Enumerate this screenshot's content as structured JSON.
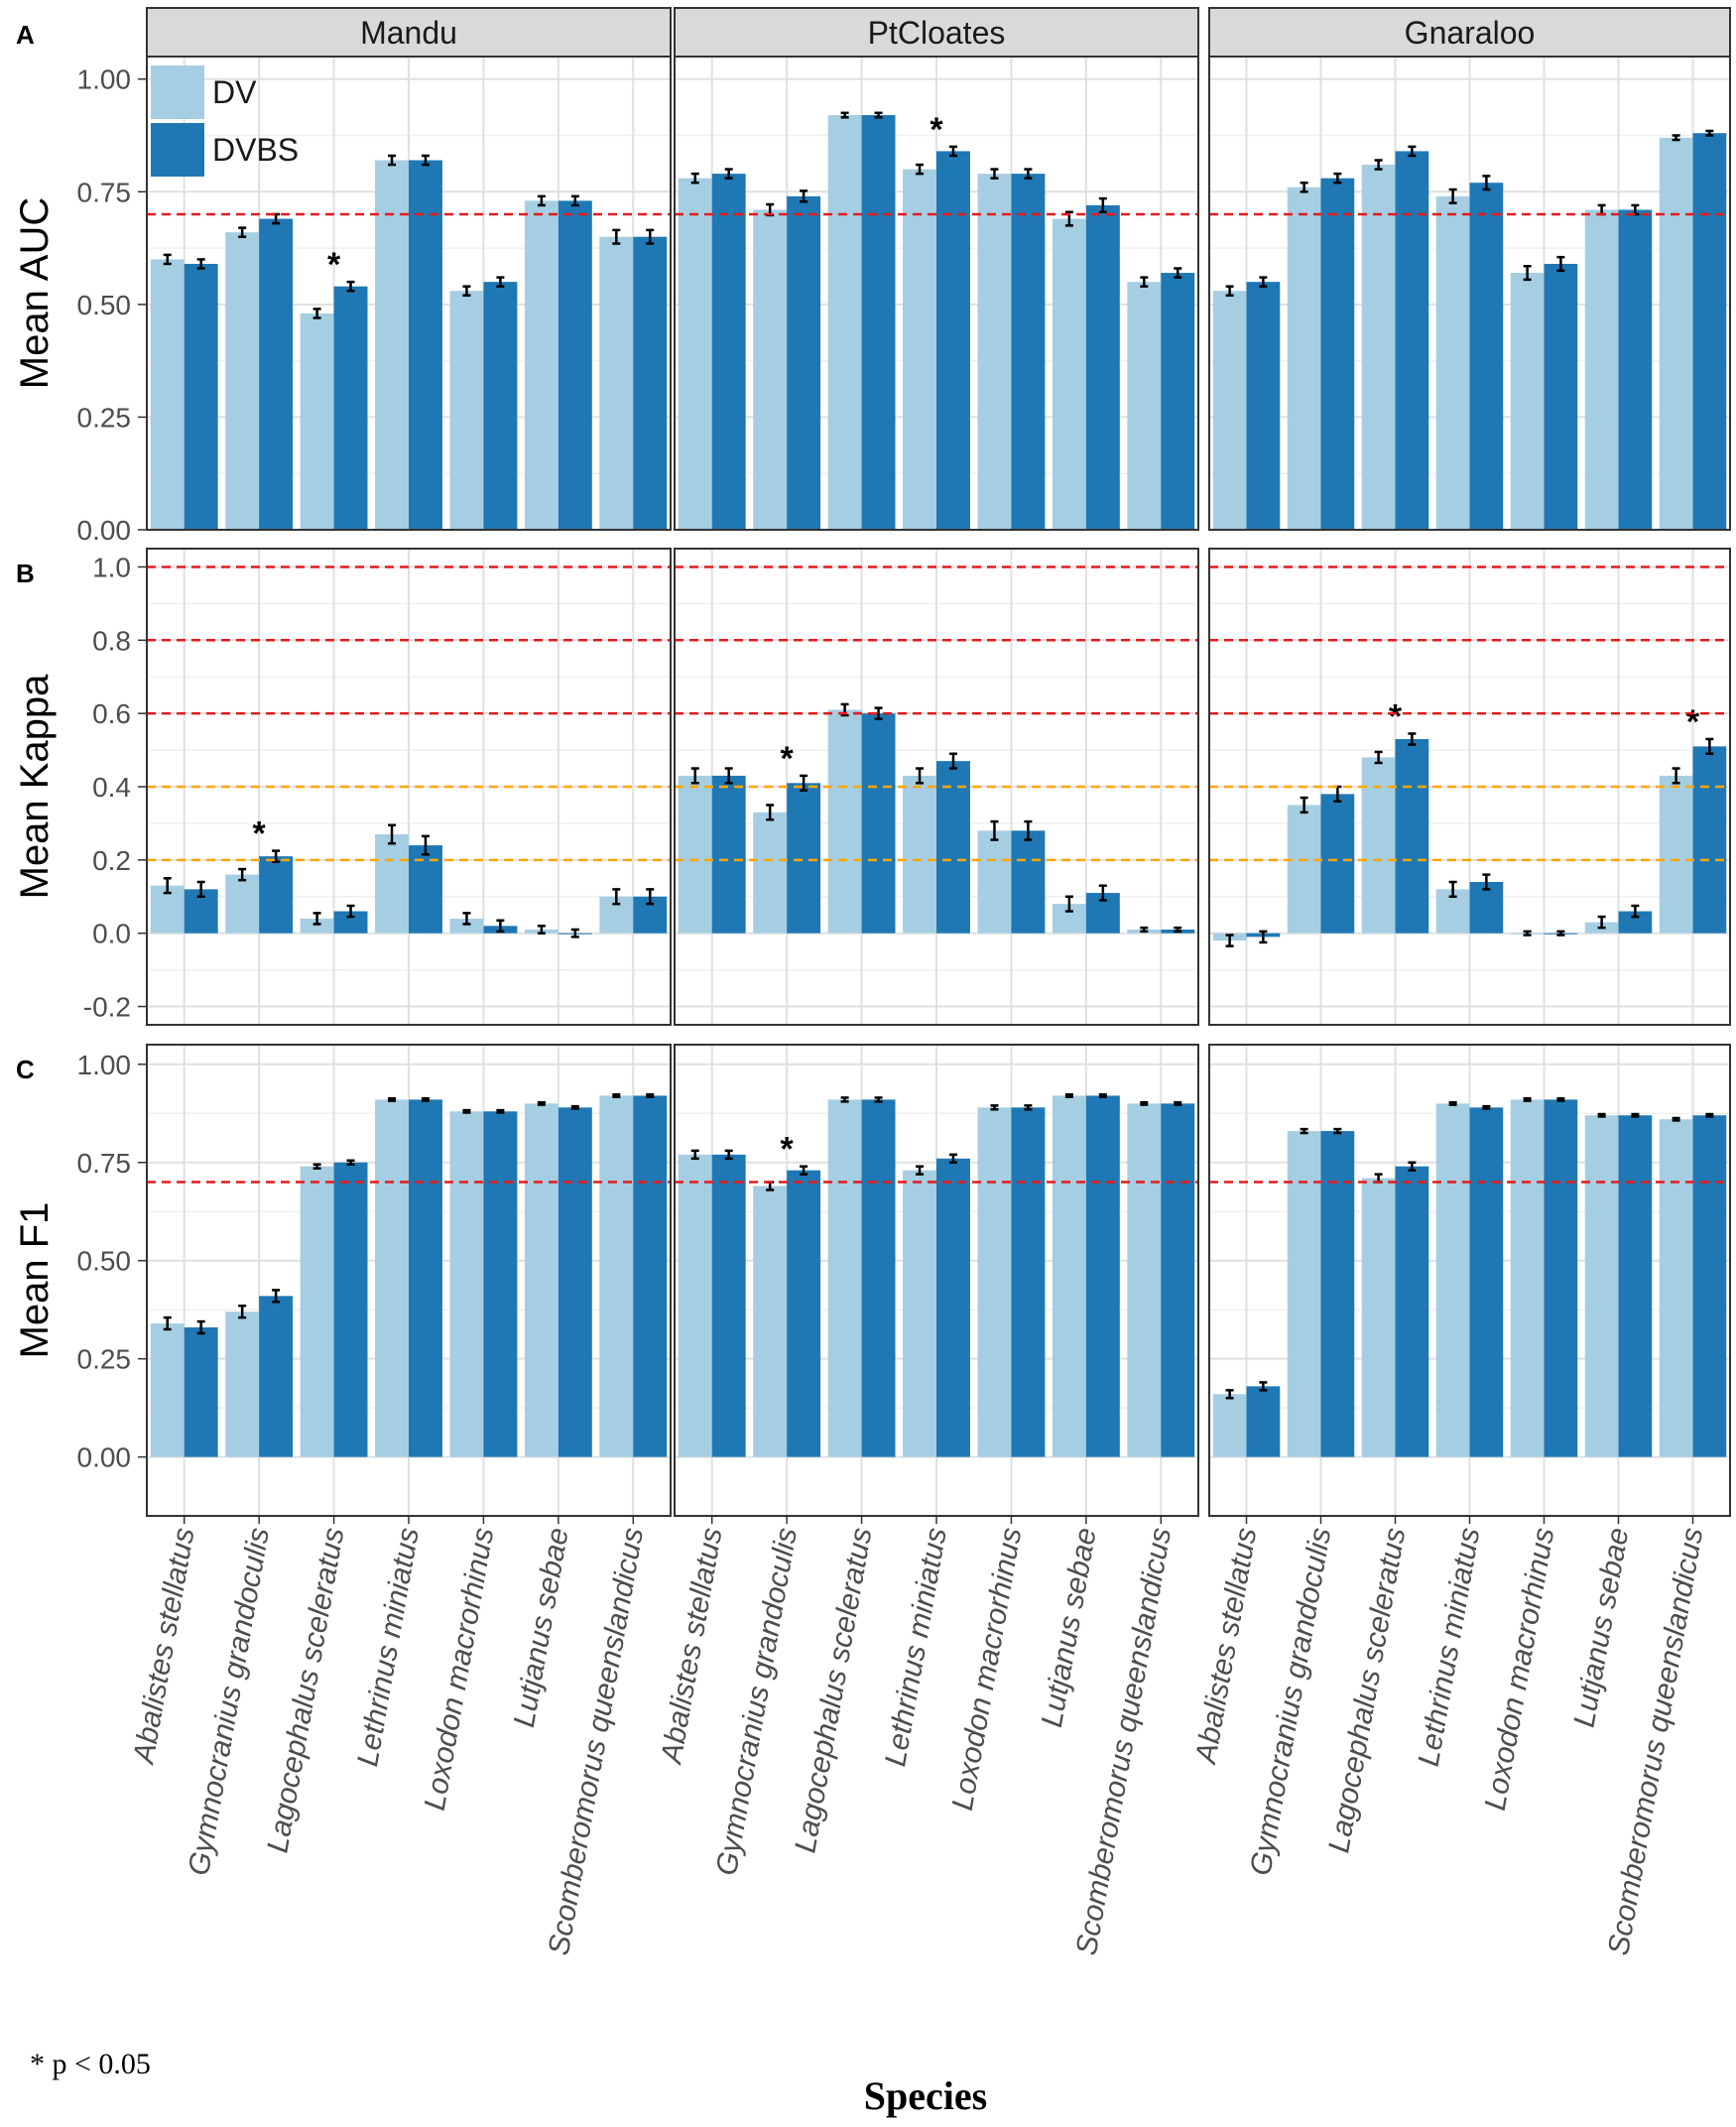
{
  "chart_data": {
    "type": "bar",
    "facets": [
      "Mandu",
      "PtCloates",
      "Gnaraloo"
    ],
    "categories": [
      "Abalistes stellatus",
      "Gymnocranius grandoculis",
      "Lagocephalus sceleratus",
      "Lethrinus miniatus",
      "Loxodon macrorhinus",
      "Lutjanus sebae",
      "Scomberomorus queenslandicus"
    ],
    "legend": [
      "DV",
      "DVBS"
    ],
    "colors": {
      "DV": "#a6cee3",
      "DVBS": "#1f78b4",
      "ref_red": "#e41a1c",
      "ref_orange": "#ffa500"
    },
    "xlabel": "Species",
    "footnote": "* p < 0.05",
    "panels": [
      {
        "letter": "A",
        "ylabel": "Mean AUC",
        "ylim": [
          0,
          1.05
        ],
        "yticks": [
          "0.00",
          "0.25",
          "0.50",
          "0.75",
          "1.00"
        ],
        "ytick_values": [
          0,
          0.25,
          0.5,
          0.75,
          1.0
        ],
        "ref_lines": [
          {
            "value": 0.7,
            "color": "red"
          }
        ],
        "data": {
          "Mandu": {
            "DV": [
              0.6,
              0.66,
              0.48,
              0.82,
              0.53,
              0.73,
              0.65
            ],
            "DVBS": [
              0.59,
              0.69,
              0.54,
              0.82,
              0.55,
              0.73,
              0.65
            ],
            "err": [
              0.01,
              0.01,
              0.01,
              0.01,
              0.01,
              0.01,
              0.015
            ],
            "sig": [
              2
            ]
          },
          "PtCloates": {
            "DV": [
              0.78,
              0.71,
              0.92,
              0.8,
              0.79,
              0.69,
              0.55
            ],
            "DVBS": [
              0.79,
              0.74,
              0.92,
              0.84,
              0.79,
              0.72,
              0.57
            ],
            "err": [
              0.01,
              0.012,
              0.005,
              0.01,
              0.01,
              0.015,
              0.01
            ],
            "sig": [
              3
            ]
          },
          "Gnaraloo": {
            "DV": [
              0.53,
              0.76,
              0.81,
              0.74,
              0.57,
              0.71,
              0.87
            ],
            "DVBS": [
              0.55,
              0.78,
              0.84,
              0.77,
              0.59,
              0.71,
              0.88
            ],
            "err": [
              0.01,
              0.01,
              0.01,
              0.015,
              0.015,
              0.01,
              0.005
            ],
            "sig": []
          }
        }
      },
      {
        "letter": "B",
        "ylabel": "Mean Kappa",
        "ylim": [
          -0.25,
          1.05
        ],
        "yticks": [
          "-0.2",
          "0.0",
          "0.2",
          "0.4",
          "0.6",
          "0.8",
          "1.0"
        ],
        "ytick_values": [
          -0.2,
          0.0,
          0.2,
          0.4,
          0.6,
          0.8,
          1.0
        ],
        "ref_lines": [
          {
            "value": 1.0,
            "color": "red"
          },
          {
            "value": 0.8,
            "color": "red"
          },
          {
            "value": 0.6,
            "color": "red"
          },
          {
            "value": 0.4,
            "color": "orange"
          },
          {
            "value": 0.2,
            "color": "orange"
          }
        ],
        "data": {
          "Mandu": {
            "DV": [
              0.13,
              0.16,
              0.04,
              0.27,
              0.04,
              0.01,
              0.1
            ],
            "DVBS": [
              0.12,
              0.21,
              0.06,
              0.24,
              0.02,
              0.0,
              0.1
            ],
            "err": [
              0.02,
              0.015,
              0.015,
              0.025,
              0.015,
              0.01,
              0.02
            ],
            "sig": [
              1
            ]
          },
          "PtCloates": {
            "DV": [
              0.43,
              0.33,
              0.61,
              0.43,
              0.28,
              0.08,
              0.01
            ],
            "DVBS": [
              0.43,
              0.41,
              0.6,
              0.47,
              0.28,
              0.11,
              0.01
            ],
            "err": [
              0.02,
              0.02,
              0.015,
              0.02,
              0.025,
              0.02,
              0.005
            ],
            "sig": [
              1
            ]
          },
          "Gnaraloo": {
            "DV": [
              -0.02,
              0.35,
              0.48,
              0.12,
              0.0,
              0.03,
              0.43
            ],
            "DVBS": [
              -0.01,
              0.38,
              0.53,
              0.14,
              0.0,
              0.06,
              0.51
            ],
            "err": [
              0.015,
              0.02,
              0.015,
              0.02,
              0.005,
              0.015,
              0.02
            ],
            "sig": [
              2,
              6
            ]
          }
        }
      },
      {
        "letter": "C",
        "ylabel": "Mean F1",
        "ylim": [
          -0.15,
          1.05
        ],
        "yticks": [
          "0.00",
          "0.25",
          "0.50",
          "0.75",
          "1.00"
        ],
        "ytick_values": [
          0,
          0.25,
          0.5,
          0.75,
          1.0
        ],
        "ref_lines": [
          {
            "value": 0.7,
            "color": "red"
          }
        ],
        "data": {
          "Mandu": {
            "DV": [
              0.34,
              0.37,
              0.74,
              0.91,
              0.88,
              0.9,
              0.92
            ],
            "DVBS": [
              0.33,
              0.41,
              0.75,
              0.91,
              0.88,
              0.89,
              0.92
            ],
            "err": [
              0.015,
              0.015,
              0.005,
              0.003,
              0.003,
              0.003,
              0.003
            ],
            "sig": []
          },
          "PtCloates": {
            "DV": [
              0.77,
              0.69,
              0.91,
              0.73,
              0.89,
              0.92,
              0.9
            ],
            "DVBS": [
              0.77,
              0.73,
              0.91,
              0.76,
              0.89,
              0.92,
              0.9
            ],
            "err": [
              0.01,
              0.01,
              0.005,
              0.01,
              0.005,
              0.003,
              0.003
            ],
            "sig": [
              1
            ]
          },
          "Gnaraloo": {
            "DV": [
              0.16,
              0.83,
              0.71,
              0.9,
              0.91,
              0.87,
              0.86
            ],
            "DVBS": [
              0.18,
              0.83,
              0.74,
              0.89,
              0.91,
              0.87,
              0.87
            ],
            "err": [
              0.01,
              0.005,
              0.01,
              0.003,
              0.003,
              0.003,
              0.003
            ],
            "sig": []
          }
        }
      }
    ]
  }
}
